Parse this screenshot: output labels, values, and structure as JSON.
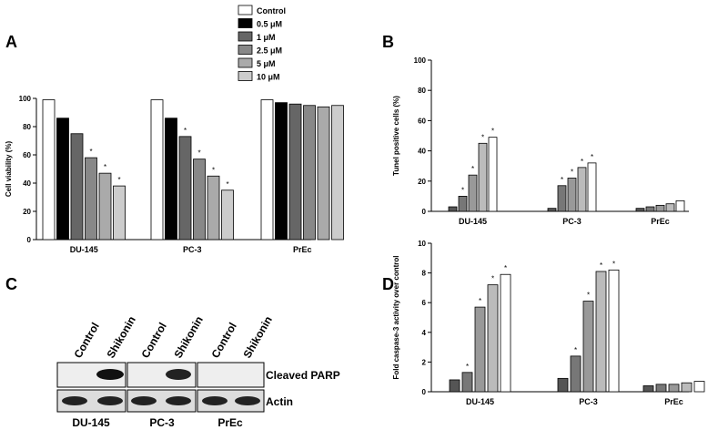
{
  "chart_data": [
    {
      "type": "bar",
      "panel": "A",
      "y_label": "Cell viability (%)",
      "categories": [
        "DU-145",
        "PC-3",
        "PrEc"
      ],
      "series": [
        {
          "name": "Control",
          "color": "#ffffff",
          "values": [
            99,
            99,
            99
          ],
          "annotations": [
            null,
            null,
            null
          ]
        },
        {
          "name": "0.5 μM",
          "color": "#000000",
          "values": [
            86,
            86,
            97
          ],
          "annotations": [
            null,
            null,
            null
          ]
        },
        {
          "name": "1 μM",
          "color": "#666666",
          "values": [
            75,
            73,
            96
          ],
          "annotations": [
            null,
            "*",
            null
          ]
        },
        {
          "name": "2.5 μM",
          "color": "#888888",
          "values": [
            58,
            57,
            95
          ],
          "annotations": [
            "*",
            "*",
            null
          ]
        },
        {
          "name": "5 μM",
          "color": "#aaaaaa",
          "values": [
            47,
            45,
            94
          ],
          "annotations": [
            "*",
            "*",
            null
          ]
        },
        {
          "name": "10 μM",
          "color": "#cccccc",
          "values": [
            38,
            35,
            95
          ],
          "annotations": [
            "*",
            "*",
            null
          ]
        }
      ],
      "ylim": [
        0,
        100
      ],
      "yticks": [
        0,
        20,
        40,
        60,
        80,
        100
      ]
    },
    {
      "type": "bar",
      "panel": "B",
      "y_label": "Tunel positive cells (%)",
      "categories": [
        "DU-145",
        "PC-3",
        "PrEc"
      ],
      "series": [
        {
          "color": "#555555",
          "values": [
            3,
            2,
            2
          ],
          "annotations": [
            null,
            null,
            null
          ]
        },
        {
          "color": "#777777",
          "values": [
            10,
            17,
            3
          ],
          "annotations": [
            "*",
            "*",
            null
          ]
        },
        {
          "color": "#999999",
          "values": [
            24,
            22,
            4
          ],
          "annotations": [
            "*",
            "*",
            null
          ]
        },
        {
          "color": "#bbbbbb",
          "values": [
            45,
            29,
            5
          ],
          "annotations": [
            "*",
            "*",
            null
          ]
        },
        {
          "color": "#ffffff",
          "values": [
            49,
            32,
            7
          ],
          "annotations": [
            "*",
            "*",
            null
          ]
        }
      ],
      "ylim": [
        0,
        100
      ],
      "yticks": [
        0,
        20,
        40,
        60,
        80,
        100
      ]
    },
    {
      "type": "bar",
      "panel": "D",
      "y_label": "Fold caspase-3 activity over control",
      "categories": [
        "DU-145",
        "PC-3",
        "PrEc"
      ],
      "series": [
        {
          "color": "#555555",
          "values": [
            0.8,
            0.9,
            0.4
          ],
          "annotations": [
            null,
            null,
            null
          ]
        },
        {
          "color": "#777777",
          "values": [
            1.3,
            2.4,
            0.5
          ],
          "annotations": [
            "*",
            "*",
            null
          ]
        },
        {
          "color": "#999999",
          "values": [
            5.7,
            6.1,
            0.5
          ],
          "annotations": [
            "*",
            "*",
            null
          ]
        },
        {
          "color": "#bbbbbb",
          "values": [
            7.2,
            8.1,
            0.6
          ],
          "annotations": [
            "*",
            "*",
            null
          ]
        },
        {
          "color": "#ffffff",
          "values": [
            7.9,
            8.2,
            0.7
          ],
          "annotations": [
            "*",
            "*",
            null
          ]
        }
      ],
      "ylim": [
        0,
        10
      ],
      "yticks": [
        0,
        2,
        4,
        6,
        8,
        10
      ]
    }
  ],
  "blot": {
    "panel": "C",
    "lanes": [
      "Control",
      "Shikonin"
    ],
    "rows": [
      "Cleaved PARP",
      "Actin"
    ],
    "cell_lines": [
      "DU-145",
      "PC-3",
      "PrEc"
    ]
  }
}
